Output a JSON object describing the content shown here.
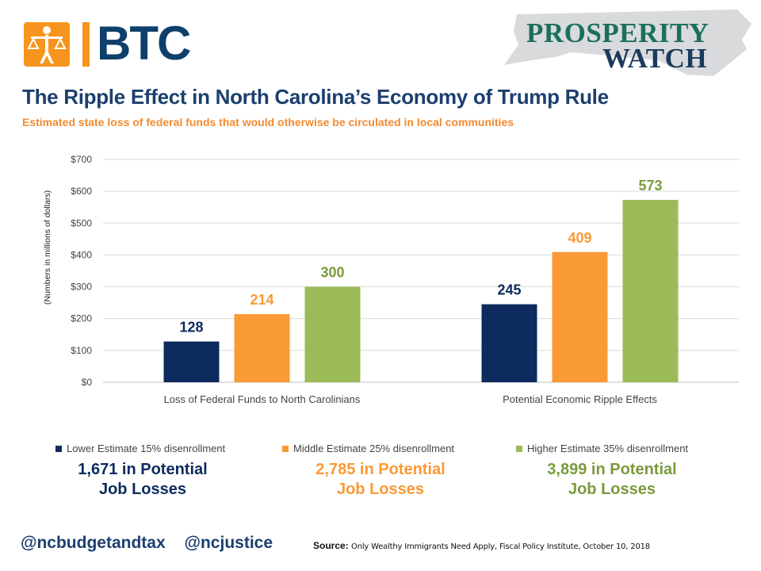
{
  "header": {
    "btc_text": "BTC",
    "pw_line1": "PROSPERITY",
    "pw_line2": "WATCH"
  },
  "title": "The Ripple Effect in North Carolina’s Economy of Trump Rule",
  "subtitle": "Estimated state loss of federal funds that would otherwise be circulated in local communities",
  "colors": {
    "title": "#1c3f6e",
    "subtitle": "#f28b30",
    "lower": "#0d2b5e",
    "middle": "#fa9a35",
    "higher": "#9bbb59",
    "grid": "#d9d9d9"
  },
  "chart_data": {
    "type": "bar",
    "categories": [
      "Loss of Federal Funds to North Carolinians",
      "Potential Economic Ripple Effects"
    ],
    "series": [
      {
        "name": "Lower Estimate 15% disenrollment",
        "values": [
          128,
          245
        ]
      },
      {
        "name": "Middle Estimate 25% disenrollment",
        "values": [
          214,
          409
        ]
      },
      {
        "name": "Higher Estimate 35% disenrollment",
        "values": [
          300,
          573
        ]
      }
    ],
    "ylabel": "(Numbers in millions of dollars)",
    "xlabel": "",
    "ylim": [
      0,
      700
    ],
    "yticks": [
      "$0",
      "$100",
      "$200",
      "$300",
      "$400",
      "$500",
      "$600",
      "$700"
    ],
    "grid": true,
    "legend_position": "bottom"
  },
  "job_losses": [
    {
      "line1": "1,671 in Potential",
      "line2": "Job Losses"
    },
    {
      "line1": "2,785 in Potential",
      "line2": "Job Losses"
    },
    {
      "line1": "3,899 in Potential",
      "line2": "Job Losses"
    }
  ],
  "footer": {
    "handle1": "@ncbudgetandtax",
    "handle2": "@ncjustice",
    "source_label": "Source:",
    "source_text": "Only Wealthy Immigrants Need Apply, Fiscal Policy Institute, October 10, 2018"
  }
}
